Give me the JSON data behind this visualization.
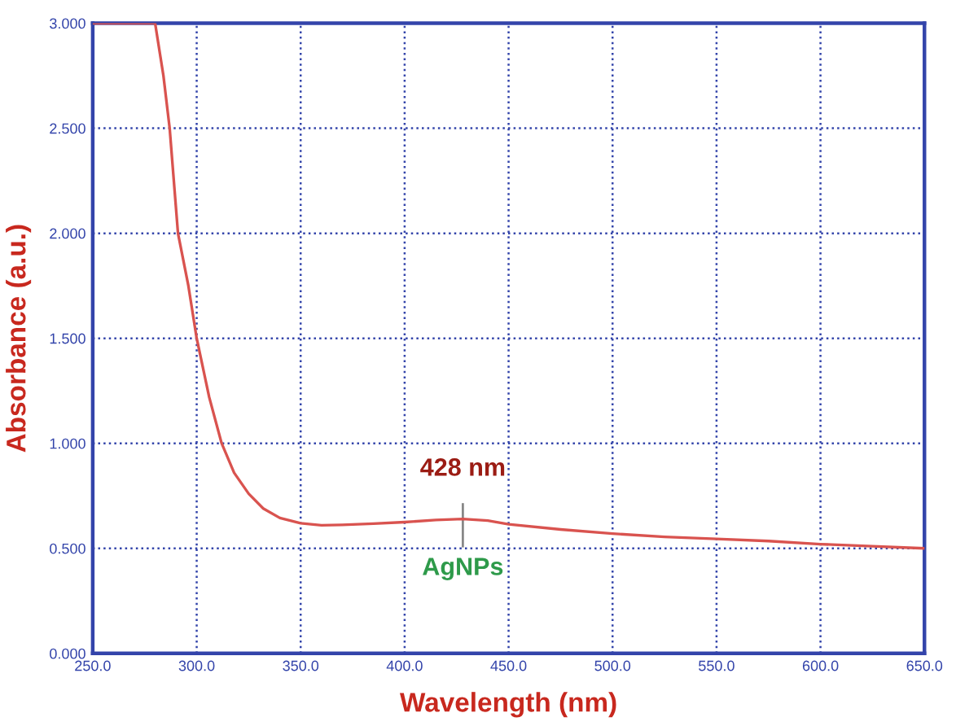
{
  "chart_data": {
    "type": "line",
    "xlabel": "Wavelength (nm)",
    "ylabel": "Absorbance (a.u.)",
    "x": [
      250,
      265,
      280,
      284,
      287,
      291,
      296,
      300,
      306,
      312,
      318,
      325,
      332,
      340,
      350,
      360,
      370,
      385,
      400,
      415,
      428,
      440,
      450,
      475,
      500,
      525,
      550,
      575,
      600,
      625,
      650
    ],
    "series": [
      {
        "color": "#d9534f",
        "values": [
          3.0,
          3.0,
          3.0,
          2.75,
          2.5,
          2.0,
          1.75,
          1.5,
          1.22,
          1.0,
          0.86,
          0.76,
          0.69,
          0.645,
          0.62,
          0.61,
          0.612,
          0.618,
          0.625,
          0.635,
          0.64,
          0.632,
          0.615,
          0.59,
          0.57,
          0.555,
          0.545,
          0.535,
          0.52,
          0.51,
          0.5
        ]
      }
    ],
    "xlim": [
      250,
      650
    ],
    "ylim": [
      0,
      3
    ],
    "xticks": [
      {
        "value": 250,
        "label": "250.0"
      },
      {
        "value": 300,
        "label": "300.0"
      },
      {
        "value": 350,
        "label": "350.0"
      },
      {
        "value": 400,
        "label": "400.0"
      },
      {
        "value": 450,
        "label": "450.0"
      },
      {
        "value": 500,
        "label": "500.0"
      },
      {
        "value": 550,
        "label": "550.0"
      },
      {
        "value": 600,
        "label": "600.0"
      },
      {
        "value": 650,
        "label": "650.0"
      }
    ],
    "yticks": [
      {
        "value": 0,
        "label": "0.000"
      },
      {
        "value": 0.5,
        "label": "0.500"
      },
      {
        "value": 1,
        "label": "1.000"
      },
      {
        "value": 1.5,
        "label": "1.500"
      },
      {
        "value": 2,
        "label": "2.000"
      },
      {
        "value": 2.5,
        "label": "2.500"
      },
      {
        "value": 3,
        "label": "3.000"
      }
    ],
    "grid": true,
    "line_style": "solid",
    "marker": "none",
    "annotations": [
      {
        "text": "428 nm",
        "x": 428,
        "y": 0.64
      },
      {
        "text": "AgNPs",
        "x": 428,
        "y": 0.64
      }
    ]
  }
}
